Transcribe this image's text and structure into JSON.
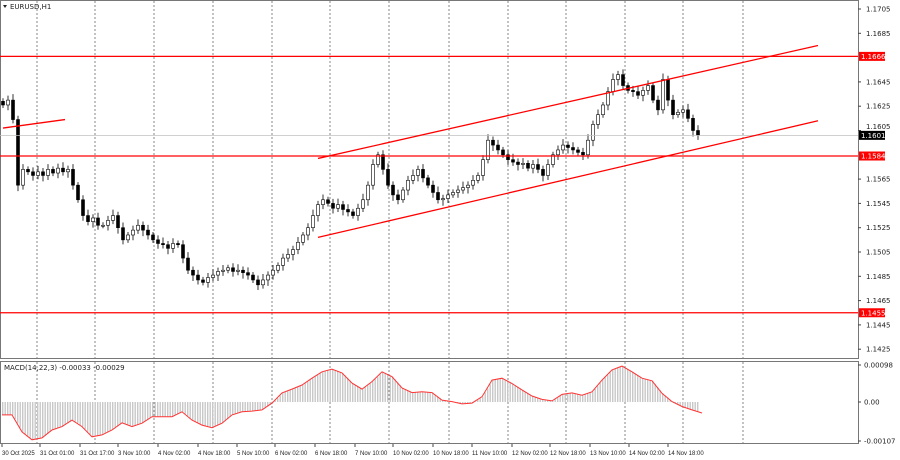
{
  "window": {
    "symbol_title": "EURUSD,H1"
  },
  "indicator": {
    "label": "MACD(14,22,3) -0.00033 -0.00029"
  },
  "colors": {
    "background": "#ffffff",
    "candle": "#000000",
    "level": "#ff0000",
    "signal": "#ff3333",
    "histogram": "#c8c8c8",
    "current_price_bg": "#000000"
  },
  "chart_data": {
    "type": "candlestick",
    "title": "EURUSD,H1",
    "ylim": [
      1.1415,
      1.1712
    ],
    "y_ticks": [
      "1.1705",
      "1.1685",
      "1.1645",
      "1.1625",
      "1.1605",
      "1.1565",
      "1.1545",
      "1.1525",
      "1.1505",
      "1.1485",
      "1.1465",
      "1.1445",
      "1.1425"
    ],
    "x_ticks": [
      "30 Oct 2025",
      "31 Oct 01:00",
      "31 Oct 17:00",
      "3 Nov 10:00",
      "4 Nov 02:00",
      "4 Nov 18:00",
      "5 Nov 10:00",
      "6 Nov 02:00",
      "6 Nov 18:00",
      "7 Nov 10:00",
      "10 Nov 02:00",
      "10 Nov 18:00",
      "11 Nov 10:00",
      "12 Nov 02:00",
      "12 Nov 18:00",
      "13 Nov 10:00",
      "14 Nov 02:00",
      "14 Nov 18:00"
    ],
    "closes": [
      1.1626,
      1.163,
      1.1614,
      1.156,
      1.1573,
      1.1571,
      1.1568,
      1.1571,
      1.1568,
      1.1573,
      1.157,
      1.1574,
      1.1571,
      1.1573,
      1.156,
      1.1548,
      1.1535,
      1.153,
      1.1533,
      1.1527,
      1.1527,
      1.1531,
      1.1535,
      1.1525,
      1.1515,
      1.1519,
      1.1523,
      1.1527,
      1.1523,
      1.1519,
      1.1515,
      1.1512,
      1.1511,
      1.1508,
      1.1512,
      1.1511,
      1.15,
      1.149,
      1.1486,
      1.1482,
      1.148,
      1.1484,
      1.1486,
      1.1489,
      1.149,
      1.1492,
      1.1489,
      1.149,
      1.1488,
      1.1486,
      1.1482,
      1.1478,
      1.1482,
      1.1486,
      1.149,
      1.1494,
      1.15,
      1.1503,
      1.1507,
      1.1513,
      1.1519,
      1.1525,
      1.1535,
      1.1544,
      1.1548,
      1.1545,
      1.1541,
      1.1544,
      1.154,
      1.1538,
      1.1535,
      1.1541,
      1.1548,
      1.156,
      1.1577,
      1.1585,
      1.1573,
      1.156,
      1.1552,
      1.1548,
      1.1556,
      1.1564,
      1.1568,
      1.1573,
      1.1566,
      1.156,
      1.1554,
      1.1548,
      1.1549,
      1.1552,
      1.1554,
      1.1556,
      1.1558,
      1.156,
      1.1564,
      1.1568,
      1.1581,
      1.1597,
      1.1593,
      1.1589,
      1.1585,
      1.1581,
      1.1579,
      1.1577,
      1.1578,
      1.1574,
      1.1577,
      1.1573,
      1.1568,
      1.1577,
      1.1585,
      1.1589,
      1.1593,
      1.1591,
      1.1589,
      1.1587,
      1.1585,
      1.1597,
      1.161,
      1.1618,
      1.1626,
      1.1637,
      1.1647,
      1.1651,
      1.1642,
      1.1638,
      1.1637,
      1.1634,
      1.1638,
      1.1642,
      1.163,
      1.1622,
      1.1647,
      1.163,
      1.1618,
      1.162,
      1.1622,
      1.1615,
      1.1605,
      1.1601
    ],
    "current_price": "1.1601",
    "levels": [
      {
        "price": 1.1666,
        "label": "1.1666"
      },
      {
        "price": 1.1584,
        "label": "1.1584"
      },
      {
        "price": 1.1455,
        "label": "1.1455"
      }
    ],
    "trendlines": [
      {
        "from": {
          "bar": 63,
          "price": 1.1582
        },
        "to": {
          "bar": 163,
          "price": 1.1675
        }
      },
      {
        "from": {
          "bar": 63,
          "price": 1.1517
        },
        "to": {
          "bar": 163,
          "price": 1.1613
        }
      },
      {
        "from": {
          "bar": 0,
          "price": 1.1607
        },
        "to": {
          "bar": 12.4,
          "price": 1.1614
        }
      }
    ],
    "macd": {
      "ylim": [
        -0.00107,
        0.00098
      ],
      "y_ticks": [
        "0.00098",
        "0.00",
        "-0.00107"
      ],
      "values": [
        -0.00034,
        -0.00034,
        -0.00079,
        -0.001,
        -0.00095,
        -0.00074,
        -0.00065,
        -0.00048,
        -0.00065,
        -0.00092,
        -0.00087,
        -0.00074,
        -0.00055,
        -0.00065,
        -0.00056,
        -0.00039,
        -0.00039,
        -0.00039,
        -0.00026,
        -0.00048,
        -0.00061,
        -0.00068,
        -0.00056,
        -0.00034,
        -0.00026,
        -0.00024,
        -0.00021,
        -3e-05,
        0.00024,
        0.00034,
        0.00045,
        0.00063,
        0.0008,
        0.00087,
        0.00077,
        0.0005,
        0.00034,
        0.00054,
        0.0008,
        0.00067,
        0.00037,
        0.00025,
        0.00027,
        0.00025,
        5e-05,
        1e-05,
        -5e-05,
        -3e-05,
        0.00014,
        0.00058,
        0.00063,
        0.00049,
        0.00032,
        0.00016,
        7e-05,
        3e-05,
        0.0002,
        0.00024,
        0.00018,
        0.00027,
        0.00058,
        0.00085,
        0.00095,
        0.0008,
        0.00063,
        0.00056,
        0.00023,
        1e-05,
        -0.00012,
        -0.00021,
        -0.00029
      ]
    }
  }
}
